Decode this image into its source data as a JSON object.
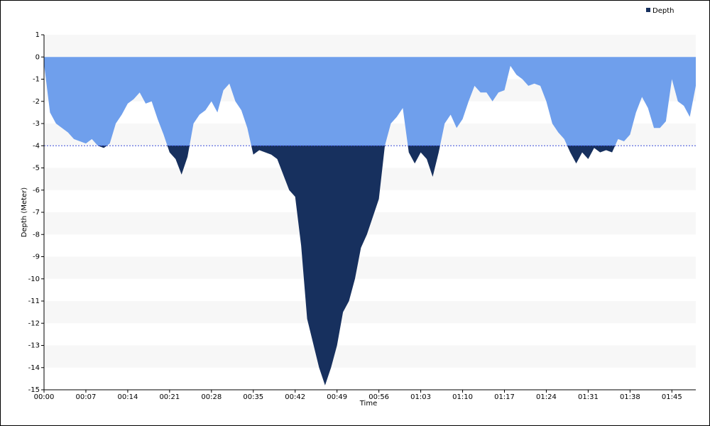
{
  "chart_data": {
    "type": "area",
    "x_label": "Time",
    "y_label": "Depth (Meter)",
    "x": [
      0,
      1,
      2,
      3,
      4,
      5,
      6,
      7,
      8,
      9,
      10,
      11,
      12,
      13,
      14,
      15,
      16,
      17,
      18,
      19,
      20,
      21,
      22,
      23,
      24,
      25,
      26,
      27,
      28,
      29,
      30,
      31,
      32,
      33,
      34,
      35,
      36,
      37,
      38,
      39,
      40,
      41,
      42,
      43,
      44,
      45,
      46,
      47,
      48,
      49,
      50,
      51,
      52,
      53,
      54,
      55,
      56,
      57,
      58,
      59,
      60,
      61,
      62,
      63,
      64,
      65,
      66,
      67,
      68,
      69,
      70,
      71,
      72,
      73,
      74,
      75,
      76,
      77,
      78,
      79,
      80,
      81,
      82,
      83,
      84,
      85,
      86,
      87,
      88,
      89,
      90,
      91,
      92,
      93,
      94,
      95,
      96,
      97,
      98,
      99,
      100,
      101,
      102,
      103,
      104,
      105,
      106,
      107,
      108,
      109
    ],
    "series": [
      {
        "name": "Depth",
        "color": "#17305e",
        "above_threshold_color": "#6f9fec",
        "values": [
          -0.3,
          -2.5,
          -3.0,
          -3.2,
          -3.4,
          -3.7,
          -3.8,
          -3.9,
          -3.7,
          -4.0,
          -4.1,
          -3.9,
          -3.0,
          -2.6,
          -2.1,
          -1.9,
          -1.6,
          -2.1,
          -2.0,
          -2.8,
          -3.5,
          -4.3,
          -4.6,
          -5.3,
          -4.5,
          -3.0,
          -2.6,
          -2.4,
          -2.0,
          -2.5,
          -1.5,
          -1.2,
          -2.0,
          -2.4,
          -3.2,
          -4.4,
          -4.2,
          -4.3,
          -4.4,
          -4.6,
          -5.3,
          -6.0,
          -6.3,
          -8.5,
          -11.8,
          -12.9,
          -14.0,
          -14.8,
          -14.0,
          -13.0,
          -11.5,
          -11.0,
          -10.0,
          -8.6,
          -8.0,
          -7.2,
          -6.4,
          -4.0,
          -3.0,
          -2.7,
          -2.3,
          -4.3,
          -4.8,
          -4.3,
          -4.6,
          -5.4,
          -4.3,
          -3.0,
          -2.6,
          -3.2,
          -2.8,
          -2.0,
          -1.3,
          -1.6,
          -1.6,
          -2.0,
          -1.6,
          -1.5,
          -0.4,
          -0.8,
          -1.0,
          -1.3,
          -1.2,
          -1.3,
          -2.0,
          -3.0,
          -3.4,
          -3.7,
          -4.3,
          -4.8,
          -4.3,
          -4.6,
          -4.1,
          -4.3,
          -4.2,
          -4.3,
          -3.7,
          -3.8,
          -3.5,
          -2.5,
          -1.8,
          -2.3,
          -3.2,
          -3.2,
          -2.9,
          -1.0,
          -2.0,
          -2.2,
          -2.7,
          -1.3
        ]
      }
    ],
    "threshold": -4,
    "xlim": [
      0,
      109
    ],
    "xticks": [
      {
        "value": 0,
        "label": "00:00"
      },
      {
        "value": 7,
        "label": "00:07"
      },
      {
        "value": 14,
        "label": "00:14"
      },
      {
        "value": 21,
        "label": "00:21"
      },
      {
        "value": 28,
        "label": "00:28"
      },
      {
        "value": 35,
        "label": "00:35"
      },
      {
        "value": 42,
        "label": "00:42"
      },
      {
        "value": 49,
        "label": "00:49"
      },
      {
        "value": 56,
        "label": "00:56"
      },
      {
        "value": 63,
        "label": "01:03"
      },
      {
        "value": 70,
        "label": "01:10"
      },
      {
        "value": 77,
        "label": "01:17"
      },
      {
        "value": 84,
        "label": "01:24"
      },
      {
        "value": 91,
        "label": "01:31"
      },
      {
        "value": 98,
        "label": "01:38"
      },
      {
        "value": 105,
        "label": "01:45"
      }
    ],
    "ylim": [
      -15,
      1
    ],
    "yticks": [
      1,
      0,
      -1,
      -2,
      -3,
      -4,
      -5,
      -6,
      -7,
      -8,
      -9,
      -10,
      -11,
      -12,
      -13,
      -14,
      -15
    ],
    "legend": "top-right"
  }
}
